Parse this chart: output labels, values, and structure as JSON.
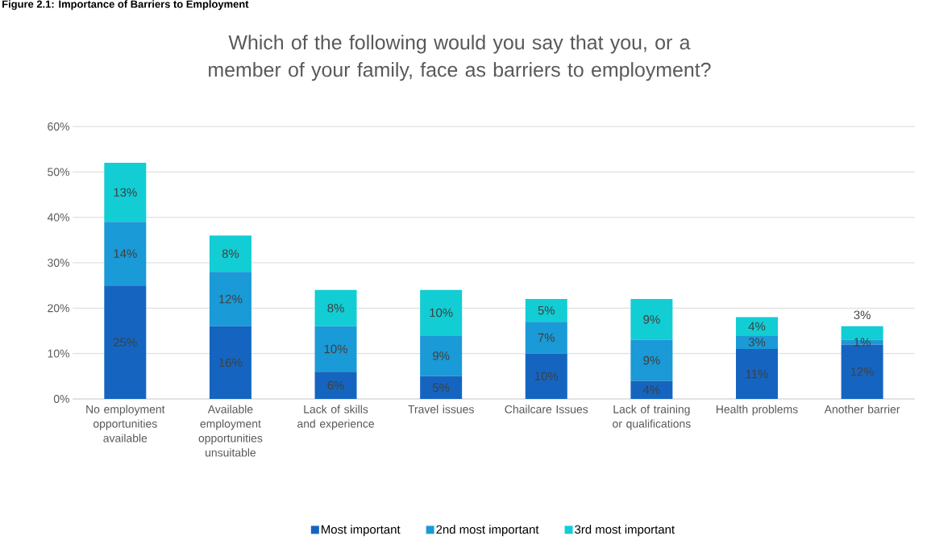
{
  "chart_data": {
    "type": "bar",
    "stacked": true,
    "title": "Which of the following would you say that you, or a member of your family, face as barriers to employment?",
    "annotations": [
      "Figure 2.1: Importance of Barriers to Employment"
    ],
    "categories": [
      "No employment opportunities available",
      "Available employment opportunities unsuitable",
      "Lack of skills and experience",
      "Travel issues",
      "Chailcare Issues",
      "Lack of training or qualifications",
      "Health problems",
      "Another barrier"
    ],
    "series": [
      {
        "name": "Most important",
        "color": "#1565c0",
        "values": [
          25,
          16,
          6,
          5,
          10,
          4,
          11,
          12
        ],
        "value_labels": [
          "25%",
          "16%",
          "6%",
          "5%",
          "10%",
          "4%",
          "11%",
          "12%"
        ]
      },
      {
        "name": "2nd most important",
        "color": "#1a9ad6",
        "values": [
          14,
          12,
          10,
          9,
          7,
          9,
          3,
          1
        ],
        "value_labels": [
          "14%",
          "12%",
          "10%",
          "9%",
          "7%",
          "9%",
          "3%",
          "1%"
        ]
      },
      {
        "name": "3rd most important",
        "color": "#12cdd4",
        "values": [
          13,
          8,
          8,
          10,
          5,
          9,
          4,
          3
        ],
        "value_labels": [
          "13%",
          "8%",
          "8%",
          "10%",
          "5%",
          "9%",
          "4%",
          "3%"
        ]
      }
    ],
    "ylim": [
      0,
      60
    ],
    "yticks": [
      {
        "value": 0,
        "label": "0%"
      },
      {
        "value": 10,
        "label": "10%"
      },
      {
        "value": 20,
        "label": "20%"
      },
      {
        "value": 30,
        "label": "30%"
      },
      {
        "value": 40,
        "label": "40%"
      },
      {
        "value": 50,
        "label": "50%"
      },
      {
        "value": 60,
        "label": "60%"
      }
    ],
    "grid": "y",
    "legend": "bottom"
  }
}
